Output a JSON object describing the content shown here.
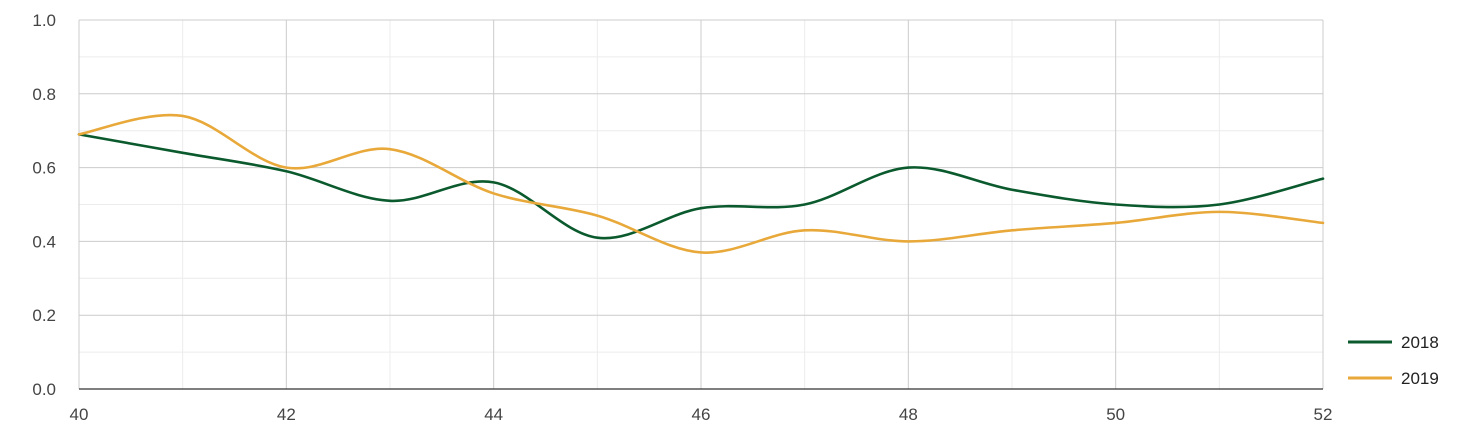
{
  "chart_data": {
    "type": "line",
    "smooth": true,
    "xlim": [
      40,
      52
    ],
    "ylim": [
      0,
      1
    ],
    "x_ticks": [
      40,
      42,
      44,
      46,
      48,
      50,
      52
    ],
    "y_ticks": [
      0,
      0.2,
      0.4,
      0.6,
      0.8,
      1.0
    ],
    "x_tick_labels": [
      "40",
      "42",
      "44",
      "46",
      "48",
      "50",
      "52"
    ],
    "y_tick_labels": [
      "0.0",
      "0.2",
      "0.4",
      "0.6",
      "0.8",
      "1.0"
    ],
    "grid": true,
    "legend_position": "bottom-right",
    "series": [
      {
        "name": "2018",
        "color": "#0b5a2e",
        "x": [
          40,
          41,
          42,
          43,
          44,
          45,
          46,
          47,
          48,
          49,
          50,
          51,
          52
        ],
        "y": [
          0.69,
          0.64,
          0.59,
          0.51,
          0.56,
          0.41,
          0.49,
          0.5,
          0.6,
          0.54,
          0.5,
          0.5,
          0.57
        ]
      },
      {
        "name": "2019",
        "color": "#e8a93a",
        "x": [
          40,
          41,
          42,
          43,
          44,
          45,
          46,
          47,
          48,
          49,
          50,
          51,
          52
        ],
        "y": [
          0.69,
          0.74,
          0.6,
          0.65,
          0.53,
          0.47,
          0.37,
          0.43,
          0.4,
          0.43,
          0.45,
          0.48,
          0.45
        ]
      }
    ]
  }
}
